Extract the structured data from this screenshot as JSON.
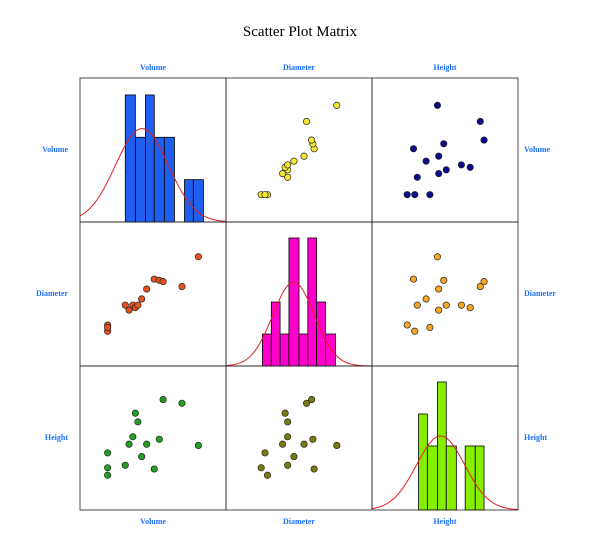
{
  "chart_data": {
    "type": "scatter_matrix",
    "title": "Scatter Plot Matrix",
    "variables": [
      {
        "name": "Volume",
        "values": [
          14,
          14,
          14,
          28,
          31,
          34,
          36,
          38,
          41,
          45,
          51,
          55,
          58,
          73,
          86
        ]
      },
      {
        "name": "Diameter",
        "values": [
          25,
          20,
          23,
          41,
          37,
          41,
          39,
          41,
          46,
          54,
          62,
          61,
          60,
          56,
          80
        ]
      },
      {
        "name": "Height",
        "values": [
          20,
          26,
          38,
          28,
          45,
          51,
          70,
          63,
          35,
          45,
          25,
          49,
          81,
          78,
          44
        ]
      }
    ],
    "histograms": [
      {
        "bins": [
          28,
          36,
          44,
          51,
          59,
          67,
          75,
          82,
          90
        ],
        "counts": [
          3,
          2,
          3,
          2,
          2,
          0,
          1,
          1
        ],
        "ylim": [
          0,
          3.4
        ]
      },
      {
        "bins": [
          21,
          28,
          35,
          42,
          50,
          57,
          64,
          71,
          79
        ],
        "counts": [
          1,
          2,
          1,
          4,
          1,
          4,
          2,
          1
        ],
        "ylim": [
          0,
          4.5
        ]
      },
      {
        "bins": [
          29,
          36,
          44,
          51,
          59,
          66,
          74,
          81
        ],
        "counts": [
          3,
          2,
          4,
          2,
          0,
          2,
          2
        ],
        "ylim": [
          0,
          4.5
        ]
      }
    ],
    "panel_colors": [
      [
        "#1f5ff0",
        "#f5e532",
        "#0a0a8a"
      ],
      [
        "#e8501e",
        "#ff00cc",
        "#f5a623"
      ],
      [
        "#22a022",
        "#7a7a10",
        "#88ee00"
      ]
    ],
    "curve_color": "#e02020",
    "xlim": [
      0,
      100
    ],
    "ylim": [
      0,
      100
    ]
  }
}
